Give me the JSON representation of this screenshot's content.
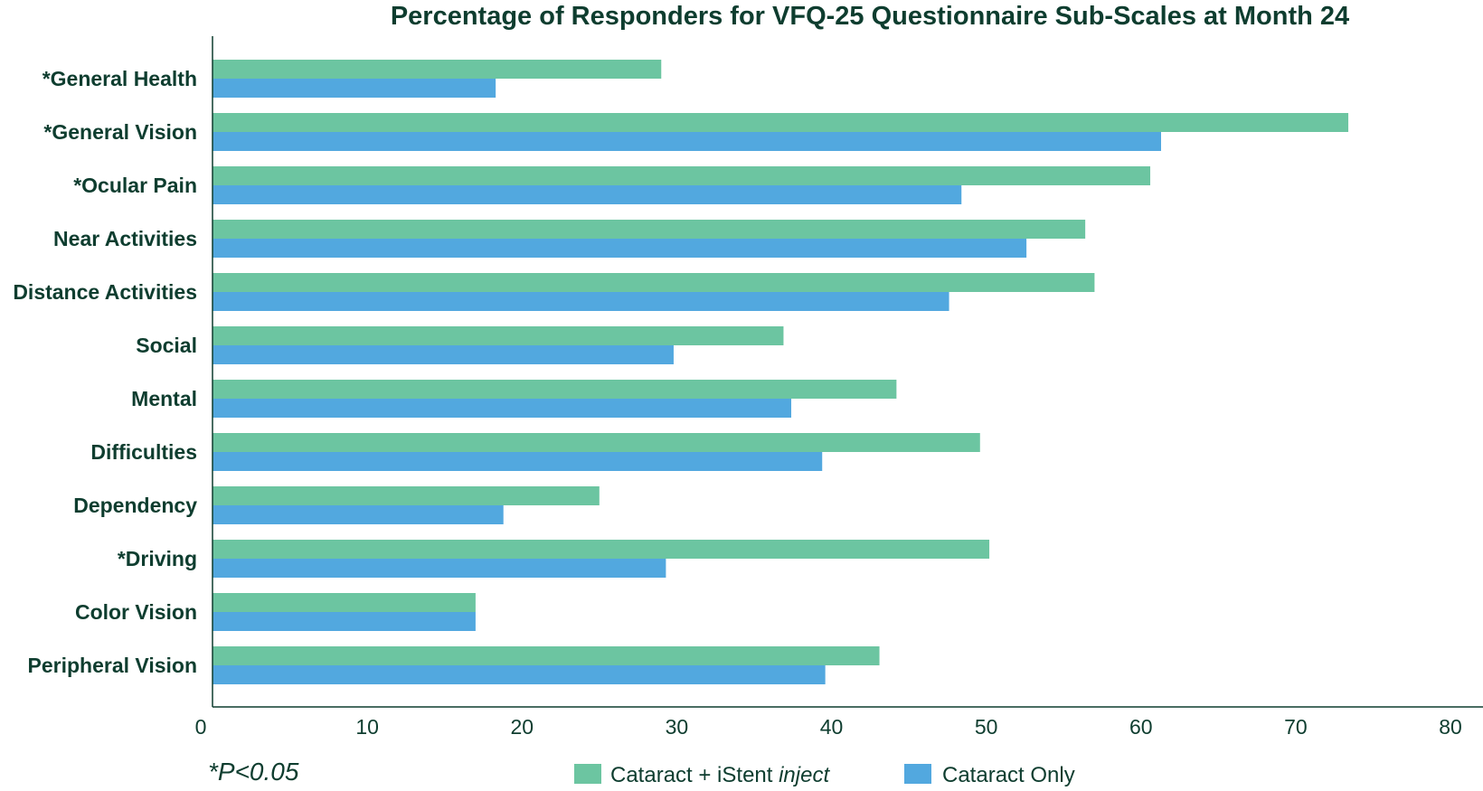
{
  "chart_data": {
    "type": "bar",
    "orientation": "horizontal",
    "title": "Percentage of Responders for VFQ-25 Questionnaire Sub-Scales at Month 24",
    "categories": [
      "*General Health",
      "*General Vision",
      "*Ocular Pain",
      "Near Activities",
      "Distance Activities",
      "Social",
      "Mental",
      "Difficulties",
      "Dependency",
      "*Driving",
      "Color Vision",
      "Peripheral Vision"
    ],
    "series": [
      {
        "name": "Cataract + iStent inject",
        "name_plain": "Cataract + iStent ",
        "name_italic": "inject",
        "color": "#6cc5a1",
        "values": [
          29.0,
          73.4,
          60.6,
          56.4,
          57.0,
          36.9,
          44.2,
          49.6,
          25.0,
          50.2,
          17.0,
          43.1
        ]
      },
      {
        "name": "Cataract Only",
        "color": "#52a8df",
        "values": [
          18.3,
          61.3,
          48.4,
          52.6,
          47.6,
          29.8,
          37.4,
          39.4,
          18.8,
          29.3,
          17.0,
          39.6
        ]
      }
    ],
    "xlim": [
      0,
      80
    ],
    "xticks": [
      "0",
      "10",
      "20",
      "30",
      "40",
      "50",
      "60",
      "70",
      "80"
    ],
    "legend_position": "bottom-right",
    "grid": false
  },
  "footnote": "*P<0.05",
  "colors": {
    "text": "#0e3d2f",
    "axis": "#0e3d2f"
  }
}
